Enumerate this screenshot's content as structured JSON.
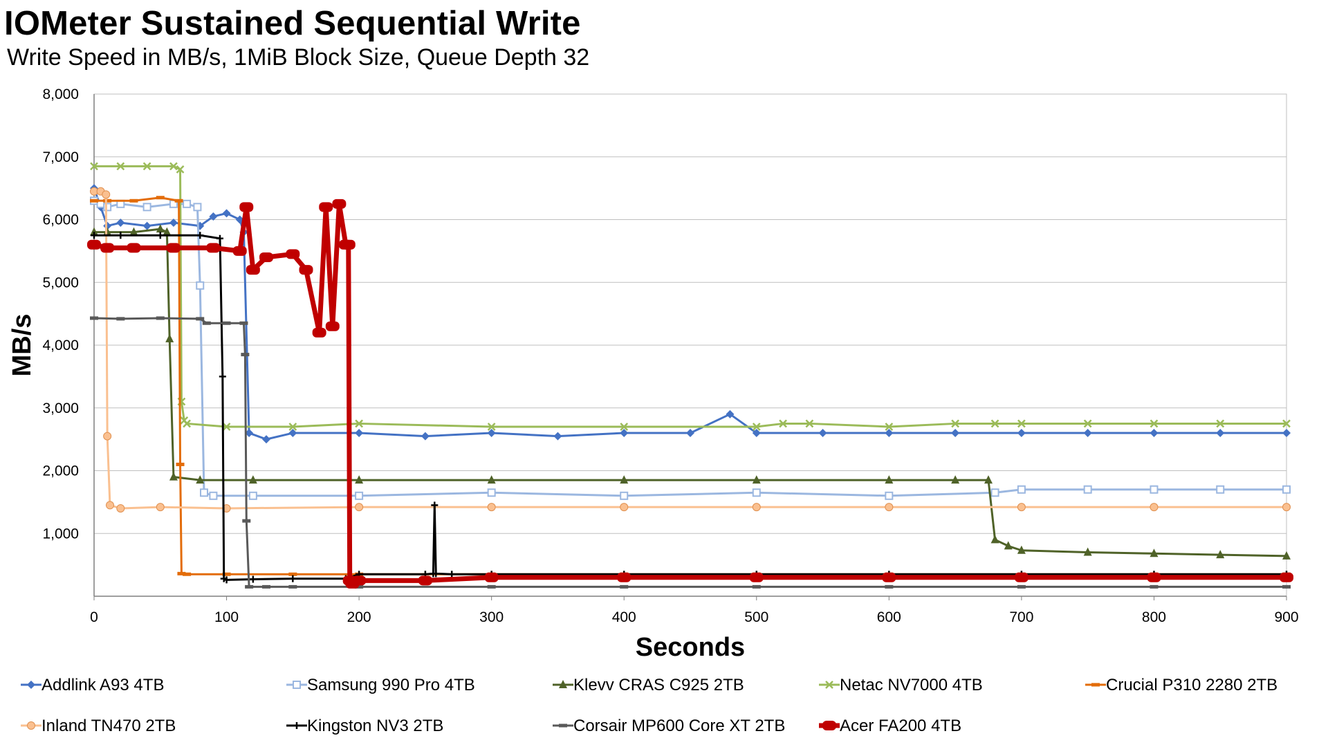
{
  "chart_data": {
    "type": "line",
    "title": "IOMeter Sustained Sequential Write",
    "subtitle": "Write Speed in MB/s, 1MiB Block Size, Queue Depth 32",
    "xlabel": "Seconds",
    "ylabel": "MB/s",
    "xlim": [
      0,
      900
    ],
    "ylim": [
      0,
      8000
    ],
    "xticks": [
      0,
      100,
      200,
      300,
      400,
      500,
      600,
      700,
      800,
      900
    ],
    "yticks": [
      1000,
      2000,
      3000,
      4000,
      5000,
      6000,
      7000,
      8000
    ],
    "xtick_labels": [
      "0",
      "100",
      "200",
      "300",
      "400",
      "500",
      "600",
      "700",
      "800",
      "900"
    ],
    "ytick_labels": [
      "1,000",
      "2,000",
      "3,000",
      "4,000",
      "5,000",
      "6,000",
      "7,000",
      "8,000"
    ],
    "grid": "horizontal",
    "legend": "bottom",
    "series": [
      {
        "name": "Addlink A93 4TB",
        "color": "#4472C4",
        "marker": "diamond",
        "x": [
          0,
          5,
          10,
          20,
          40,
          60,
          80,
          90,
          100,
          110,
          113,
          117,
          130,
          150,
          200,
          250,
          300,
          350,
          400,
          450,
          480,
          500,
          550,
          600,
          650,
          700,
          750,
          800,
          850,
          900
        ],
        "y": [
          6500,
          6200,
          5900,
          5950,
          5900,
          5950,
          5900,
          6050,
          6100,
          6000,
          5800,
          2600,
          2500,
          2600,
          2600,
          2550,
          2600,
          2550,
          2600,
          2600,
          2900,
          2600,
          2600,
          2600,
          2600,
          2600,
          2600,
          2600,
          2600,
          2600
        ]
      },
      {
        "name": "Samsung 990 Pro 4TB",
        "color": "#9BB7E0",
        "marker": "square",
        "x": [
          0,
          5,
          10,
          20,
          40,
          60,
          70,
          78,
          80,
          83,
          90,
          120,
          200,
          300,
          400,
          500,
          600,
          680,
          700,
          750,
          800,
          850,
          900
        ],
        "y": [
          6300,
          6250,
          6200,
          6250,
          6200,
          6250,
          6250,
          6200,
          4950,
          1650,
          1600,
          1600,
          1600,
          1650,
          1600,
          1650,
          1600,
          1650,
          1700,
          1700,
          1700,
          1700,
          1700
        ]
      },
      {
        "name": "Klevv CRAS C925 2TB",
        "color": "#4F6228",
        "marker": "triangle",
        "x": [
          0,
          10,
          30,
          50,
          55,
          57,
          60,
          80,
          120,
          200,
          300,
          400,
          500,
          600,
          650,
          675,
          680,
          690,
          700,
          750,
          800,
          850,
          900
        ],
        "y": [
          5800,
          5800,
          5800,
          5850,
          5800,
          4100,
          1900,
          1850,
          1850,
          1850,
          1850,
          1850,
          1850,
          1850,
          1850,
          1850,
          900,
          800,
          730,
          700,
          680,
          660,
          640
        ]
      },
      {
        "name": "Netac NV7000 4TB",
        "color": "#9BBB59",
        "marker": "x",
        "x": [
          0,
          20,
          40,
          60,
          65,
          66,
          68,
          70,
          100,
          150,
          200,
          300,
          400,
          500,
          520,
          540,
          600,
          650,
          680,
          700,
          750,
          800,
          850,
          900
        ],
        "y": [
          6850,
          6850,
          6850,
          6850,
          6800,
          3100,
          2800,
          2750,
          2700,
          2700,
          2750,
          2700,
          2700,
          2700,
          2750,
          2750,
          2700,
          2750,
          2750,
          2750,
          2750,
          2750,
          2750,
          2750
        ]
      },
      {
        "name": "Crucial P310 2280 2TB",
        "color": "#E36C09",
        "marker": "dash",
        "x": [
          0,
          10,
          30,
          50,
          64,
          65,
          66,
          70,
          100,
          150,
          200,
          300,
          400,
          500,
          600,
          700,
          800,
          900
        ],
        "y": [
          6300,
          6300,
          6300,
          6350,
          6300,
          2100,
          360,
          350,
          350,
          350,
          350,
          350,
          350,
          350,
          350,
          350,
          350,
          350
        ]
      },
      {
        "name": "Inland TN470 2TB",
        "color": "#FAC090",
        "marker": "circle",
        "x": [
          0,
          5,
          9,
          10,
          12,
          20,
          50,
          100,
          200,
          300,
          400,
          500,
          600,
          700,
          800,
          900
        ],
        "y": [
          6450,
          6450,
          6400,
          2550,
          1450,
          1400,
          1420,
          1400,
          1420,
          1420,
          1420,
          1420,
          1420,
          1420,
          1420,
          1420
        ]
      },
      {
        "name": "Kingston NV3 2TB",
        "color": "#000000",
        "marker": "plus",
        "x": [
          0,
          20,
          50,
          80,
          95,
          97,
          98,
          100,
          120,
          150,
          190,
          200,
          250,
          256,
          257,
          258,
          270,
          300,
          400,
          500,
          600,
          700,
          800,
          900
        ],
        "y": [
          5750,
          5750,
          5750,
          5750,
          5700,
          3500,
          280,
          260,
          270,
          280,
          280,
          350,
          350,
          360,
          1450,
          360,
          350,
          350,
          350,
          350,
          350,
          350,
          350,
          350
        ]
      },
      {
        "name": "Corsair MP600 Core XT 2TB",
        "color": "#595959",
        "marker": "dash",
        "x": [
          0,
          20,
          50,
          80,
          85,
          100,
          113,
          114,
          115,
          117,
          130,
          150,
          200,
          300,
          400,
          500,
          600,
          700,
          800,
          900
        ],
        "y": [
          4430,
          4420,
          4430,
          4420,
          4350,
          4350,
          4350,
          3850,
          1200,
          150,
          150,
          150,
          150,
          150,
          150,
          150,
          150,
          150,
          150,
          150
        ]
      },
      {
        "name": "Acer FA200 4TB",
        "color": "#C00000",
        "marker": "thick",
        "x": [
          0,
          10,
          30,
          60,
          90,
          110,
          115,
          120,
          130,
          150,
          160,
          170,
          175,
          180,
          185,
          190,
          192,
          193,
          195,
          200,
          250,
          300,
          400,
          500,
          600,
          700,
          800,
          900
        ],
        "y": [
          5600,
          5550,
          5550,
          5550,
          5550,
          5500,
          6200,
          5200,
          5400,
          5450,
          5200,
          4200,
          6200,
          4300,
          6250,
          5600,
          5600,
          250,
          200,
          250,
          250,
          300,
          300,
          300,
          300,
          300,
          300,
          300
        ]
      }
    ]
  }
}
